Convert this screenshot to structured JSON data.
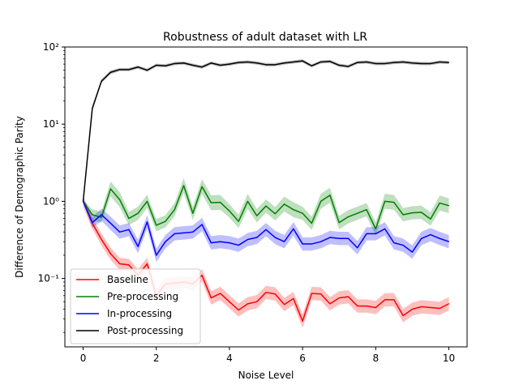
{
  "chart_data": {
    "type": "line",
    "title": "Robustness of adult dataset with LR",
    "xlabel": "Noise Level",
    "ylabel": "Difference of Demographic Parity",
    "xlim": [
      -0.5,
      10.5
    ],
    "ylim": [
      0.013,
      100
    ],
    "yscale": "log",
    "grid": false,
    "legend_position": "lower-left",
    "x_ticks": [
      0,
      2,
      4,
      6,
      8,
      10
    ],
    "x_tick_labels": [
      "0",
      "2",
      "4",
      "6",
      "8",
      "10"
    ],
    "y_ticks": [
      0.1,
      1,
      10,
      100
    ],
    "y_tick_labels": [
      "10⁻¹",
      "10⁰",
      "10¹",
      "10²"
    ],
    "x": [
      0,
      0.25,
      0.5,
      0.75,
      1,
      1.25,
      1.5,
      1.75,
      2,
      2.25,
      2.5,
      2.75,
      3,
      3.25,
      3.5,
      3.75,
      4,
      4.25,
      4.5,
      4.75,
      5,
      5.25,
      5.5,
      5.75,
      6,
      6.25,
      6.5,
      6.75,
      7,
      7.25,
      7.5,
      7.75,
      8,
      8.25,
      8.5,
      8.75,
      9,
      9.25,
      9.5,
      9.75,
      10
    ],
    "series": [
      {
        "name": "Baseline",
        "color": "#ff0000",
        "values": [
          1.0,
          0.52,
          0.32,
          0.21,
          0.155,
          0.15,
          0.11,
          0.155,
          0.06,
          0.085,
          0.087,
          0.09,
          0.085,
          0.11,
          0.056,
          0.064,
          0.05,
          0.039,
          0.047,
          0.05,
          0.066,
          0.063,
          0.046,
          0.055,
          0.028,
          0.064,
          0.063,
          0.047,
          0.056,
          0.058,
          0.044,
          0.044,
          0.042,
          0.053,
          0.053,
          0.033,
          0.04,
          0.043,
          0.042,
          0.041,
          0.047
        ],
        "band": [
          0.18,
          0.18,
          0.2,
          0.2,
          0.2,
          0.2,
          0.2,
          0.2,
          0.2,
          0.2,
          0.2,
          0.2,
          0.2,
          0.2,
          0.22,
          0.22,
          0.22,
          0.22,
          0.22,
          0.22,
          0.22,
          0.22,
          0.22,
          0.22,
          0.22,
          0.22,
          0.22,
          0.22,
          0.22,
          0.22,
          0.22,
          0.22,
          0.22,
          0.22,
          0.22,
          0.22,
          0.22,
          0.22,
          0.22,
          0.22,
          0.22
        ]
      },
      {
        "name": "Pre-processing",
        "color": "#008000",
        "values": [
          1.0,
          0.67,
          0.62,
          1.45,
          1.05,
          0.6,
          0.7,
          1.0,
          0.49,
          0.55,
          0.78,
          1.6,
          0.7,
          1.55,
          0.96,
          0.97,
          0.75,
          0.55,
          1.0,
          0.65,
          0.87,
          0.69,
          0.92,
          0.78,
          0.7,
          0.52,
          1.0,
          1.2,
          0.53,
          0.63,
          0.7,
          0.78,
          0.44,
          1.0,
          0.97,
          0.67,
          0.71,
          0.72,
          0.59,
          0.95,
          0.88
        ],
        "band": [
          0.05,
          0.18,
          0.18,
          0.25,
          0.25,
          0.22,
          0.22,
          0.22,
          0.2,
          0.2,
          0.22,
          0.25,
          0.22,
          0.25,
          0.25,
          0.25,
          0.22,
          0.22,
          0.25,
          0.22,
          0.22,
          0.22,
          0.25,
          0.25,
          0.22,
          0.22,
          0.25,
          0.25,
          0.22,
          0.22,
          0.22,
          0.22,
          0.22,
          0.25,
          0.25,
          0.22,
          0.22,
          0.22,
          0.22,
          0.25,
          0.25
        ]
      },
      {
        "name": "In-processing",
        "color": "#0000ff",
        "values": [
          1.0,
          0.53,
          0.67,
          0.52,
          0.4,
          0.43,
          0.26,
          0.54,
          0.2,
          0.3,
          0.38,
          0.39,
          0.4,
          0.5,
          0.29,
          0.3,
          0.29,
          0.27,
          0.32,
          0.34,
          0.43,
          0.34,
          0.3,
          0.44,
          0.28,
          0.28,
          0.3,
          0.34,
          0.33,
          0.33,
          0.25,
          0.38,
          0.38,
          0.44,
          0.29,
          0.27,
          0.22,
          0.33,
          0.37,
          0.33,
          0.3
        ],
        "band": [
          0.05,
          0.18,
          0.2,
          0.22,
          0.22,
          0.22,
          0.22,
          0.22,
          0.22,
          0.22,
          0.22,
          0.22,
          0.22,
          0.22,
          0.22,
          0.22,
          0.22,
          0.22,
          0.22,
          0.22,
          0.22,
          0.22,
          0.22,
          0.22,
          0.22,
          0.22,
          0.22,
          0.22,
          0.22,
          0.22,
          0.22,
          0.22,
          0.22,
          0.22,
          0.22,
          0.22,
          0.22,
          0.22,
          0.22,
          0.22,
          0.22
        ]
      },
      {
        "name": "Post-processing",
        "color": "#000000",
        "values": [
          1.0,
          16.0,
          36.0,
          47.0,
          51.0,
          51.0,
          55.0,
          50.0,
          58.0,
          57.0,
          61.0,
          62.0,
          58.0,
          55.0,
          62.0,
          58.0,
          60.0,
          63.0,
          64.0,
          62.0,
          59.0,
          59.0,
          62.0,
          64.0,
          66.0,
          57.0,
          64.0,
          65.0,
          58.0,
          56.0,
          63.0,
          64.0,
          61.0,
          61.0,
          63.0,
          64.0,
          62.0,
          61.0,
          61.0,
          64.0,
          63.0
        ],
        "band": [
          0.02,
          0.08,
          0.06,
          0.06,
          0.05,
          0.05,
          0.05,
          0.05,
          0.05,
          0.05,
          0.05,
          0.05,
          0.05,
          0.05,
          0.05,
          0.05,
          0.05,
          0.05,
          0.05,
          0.05,
          0.05,
          0.05,
          0.05,
          0.05,
          0.05,
          0.05,
          0.05,
          0.05,
          0.05,
          0.05,
          0.05,
          0.05,
          0.05,
          0.05,
          0.05,
          0.05,
          0.05,
          0.05,
          0.05,
          0.05,
          0.05
        ]
      }
    ]
  }
}
